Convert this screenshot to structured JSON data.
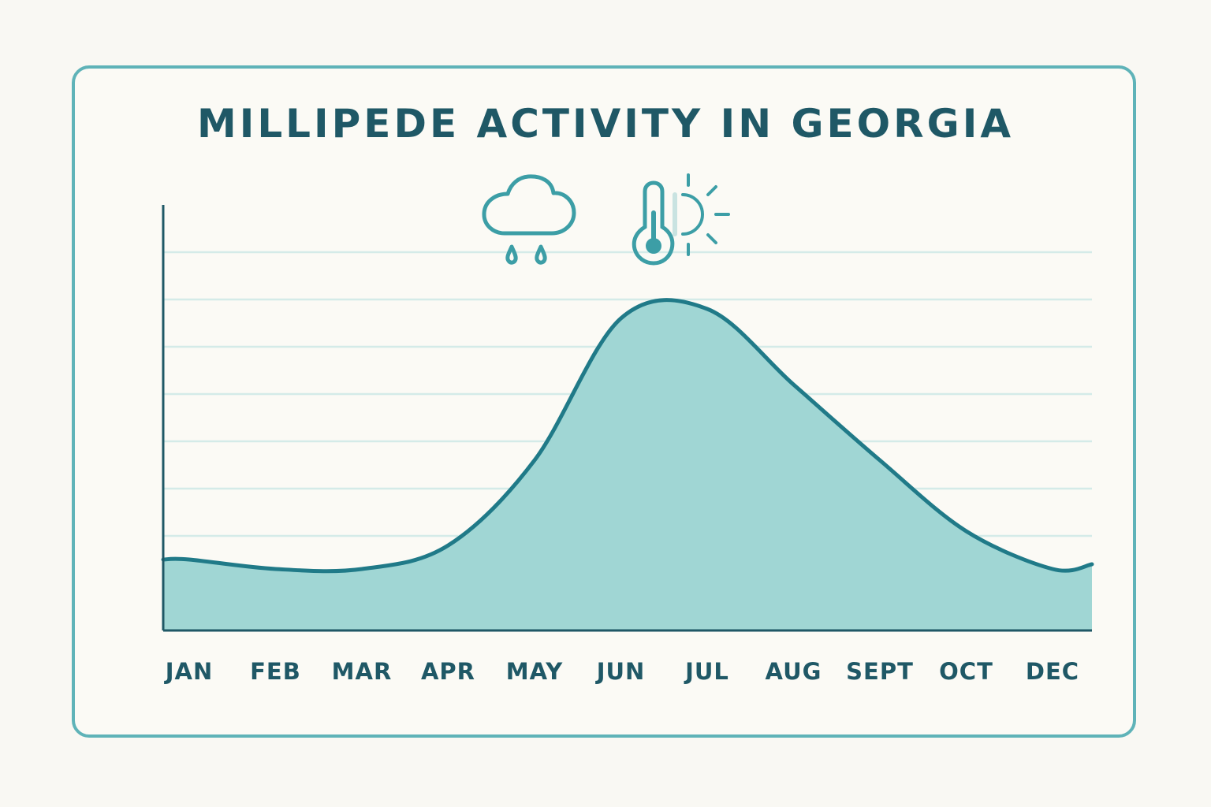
{
  "chart_data": {
    "type": "area",
    "title": "MILLIPEDE ACTIVITY IN GEORGIA",
    "xlabel": "",
    "ylabel": "",
    "categories": [
      "JAN",
      "FEB",
      "MAR",
      "APR",
      "MAY",
      "JUN",
      "JUL",
      "AUG",
      "SEPT",
      "OCT",
      "DEC"
    ],
    "values": [
      1.5,
      1.3,
      1.3,
      1.8,
      3.6,
      6.6,
      6.8,
      5.2,
      3.6,
      2.1,
      1.3
    ],
    "ylim": [
      0,
      9
    ],
    "grid": true,
    "legend": "none",
    "icons": [
      "rain-cloud-icon",
      "thermometer-icon",
      "sun-icon"
    ],
    "colors": {
      "fill": "#a0d6d4",
      "line": "#207a88",
      "grid": "#d4ebe8",
      "axis": "#1f5866",
      "frame": "#5fb3b8",
      "text": "#1f5866",
      "icon": "#3c9ea6"
    }
  }
}
